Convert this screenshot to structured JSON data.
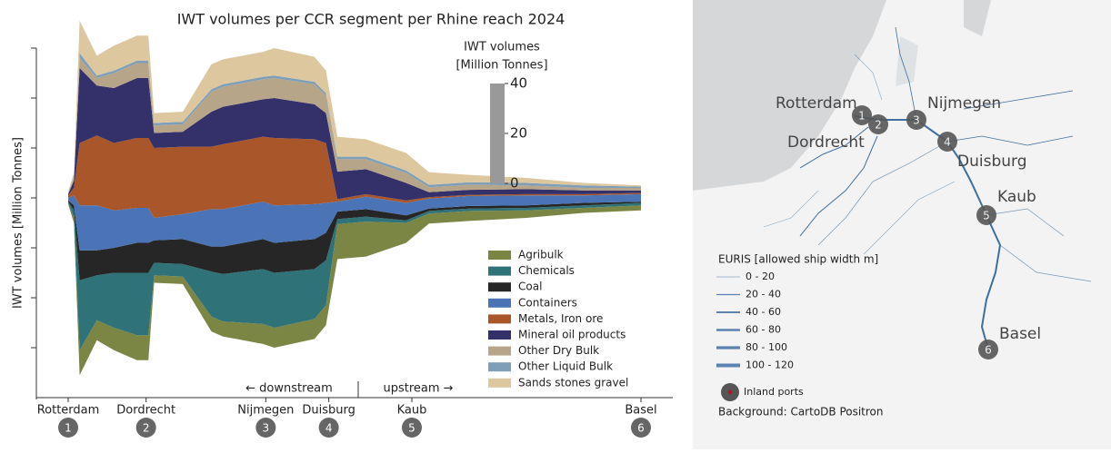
{
  "chart_data": {
    "type": "streamgraph",
    "title": "IWT volumes per CCR segment per Rhine reach  2024",
    "y_label": "IWT volumes [Million Tonnes]",
    "x": [
      0,
      1,
      2,
      5,
      8,
      12,
      14,
      15,
      20,
      25,
      27,
      34,
      36,
      43,
      45,
      47,
      52,
      59,
      63,
      70,
      80,
      90,
      100
    ],
    "xlim": [
      0,
      100
    ],
    "xticks": [
      {
        "value": 0,
        "label": "Rotterdam"
      },
      {
        "value": 13.6,
        "label": "Dordrecht"
      },
      {
        "value": 34.5,
        "label": "Nijmegen"
      },
      {
        "value": 45.5,
        "label": "Duisburg"
      },
      {
        "value": 60,
        "label": "Kaub"
      },
      {
        "value": 100,
        "label": "Basel"
      }
    ],
    "station_numbers": [
      1,
      2,
      3,
      4,
      5,
      6
    ],
    "ylim": [
      -80,
      60
    ],
    "yticks": [
      -60,
      -40,
      -20,
      0,
      20,
      40,
      60
    ],
    "series": [
      {
        "name": "Agribulk",
        "color": "#7b8645",
        "values": [
          0.5,
          2,
          10,
          8,
          9,
          10,
          10,
          3,
          3,
          6,
          6,
          8,
          8,
          8,
          8,
          14,
          14,
          8,
          4,
          4,
          3,
          2,
          2
        ]
      },
      {
        "name": "Chemicals",
        "color": "#2f7378",
        "values": [
          0.5,
          3,
          28,
          18,
          22,
          25,
          25,
          5,
          5,
          18,
          19,
          22,
          22,
          20,
          18,
          2,
          2,
          1,
          1,
          1,
          1,
          1,
          1
        ]
      },
      {
        "name": "Coal",
        "color": "#262626",
        "values": [
          0.5,
          2,
          12,
          10,
          10,
          12,
          12,
          9,
          10,
          10,
          11,
          12,
          12,
          12,
          11,
          3,
          3,
          2,
          1,
          1,
          1,
          1,
          0.5
        ]
      },
      {
        "name": "Containers",
        "color": "#4a74b5",
        "values": [
          1,
          4,
          18,
          18,
          15,
          14,
          14,
          9,
          10,
          15,
          15,
          15,
          15,
          14,
          12,
          4,
          5,
          5,
          4,
          4,
          4,
          3,
          3
        ]
      },
      {
        "name": "Metals, Iron ore",
        "color": "#a9572a",
        "values": [
          1,
          3,
          25,
          28,
          27,
          28,
          28,
          28,
          27,
          25,
          26,
          26,
          27,
          26,
          24,
          1,
          1,
          1,
          0.5,
          0.5,
          0.5,
          0.5,
          0.5
        ]
      },
      {
        "name": "Mineral oil products",
        "color": "#34306a",
        "values": [
          0.5,
          3,
          30,
          20,
          22,
          24,
          24,
          6,
          6,
          14,
          15,
          15,
          16,
          14,
          12,
          11,
          10,
          7,
          2,
          2,
          2,
          1.5,
          1
        ]
      },
      {
        "name": "Other Dry Bulk",
        "color": "#b7a58a",
        "values": [
          0.5,
          1,
          4,
          3,
          6,
          6,
          6,
          3,
          3,
          8,
          8,
          8,
          8,
          8,
          7,
          5,
          4,
          4,
          2,
          2,
          1.5,
          1,
          1
        ]
      },
      {
        "name": "Other Liquid Bulk",
        "color": "#7f9fb8",
        "values": [
          0.2,
          0.5,
          2,
          1,
          1,
          1,
          1,
          1,
          1,
          1,
          1,
          1,
          1,
          1,
          1,
          1,
          1,
          1,
          1,
          1,
          1,
          1,
          0.5
        ]
      },
      {
        "name": "Sands stones  gravel",
        "color": "#dcc79e",
        "values": [
          0.3,
          1.5,
          13,
          8,
          10,
          10,
          10,
          4,
          4,
          10,
          10,
          10,
          11,
          10,
          9,
          8,
          7,
          7,
          5,
          3,
          2,
          1,
          0.5
        ]
      }
    ],
    "scale_bar": {
      "title": [
        "IWT volumes",
        "[Million Tonnes]"
      ],
      "ticks": [
        0,
        20,
        40
      ]
    },
    "annotations": {
      "downstream": "← downstream",
      "upstream": "upstream →"
    }
  },
  "map": {
    "cities": [
      "Rotterdam",
      "Dordrecht",
      "Nijmegen",
      "Duisburg",
      "Kaub",
      "Basel"
    ],
    "legend": {
      "title": "EURIS [allowed ship width m]",
      "entries": [
        "0 - 20",
        "20 - 40",
        "40 - 60",
        "60 - 80",
        "80 - 100",
        "100 - 120"
      ],
      "ports_label": "Inland ports"
    },
    "credit": "Background: CartoDB Positron"
  }
}
